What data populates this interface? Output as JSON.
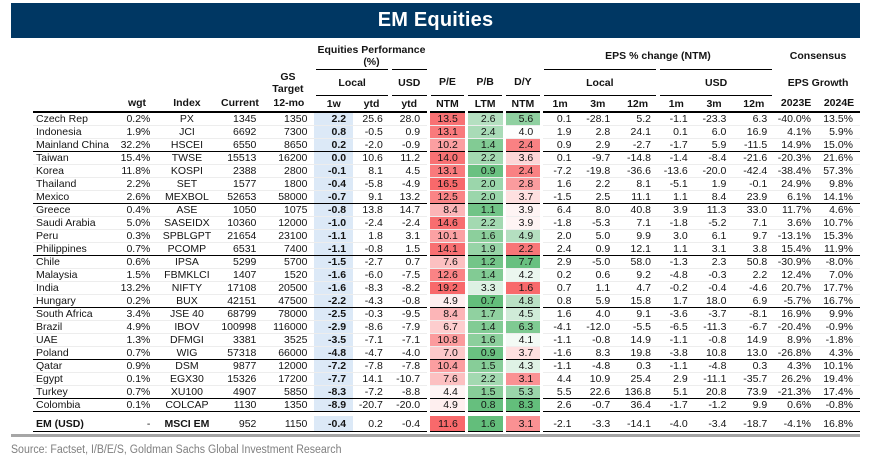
{
  "title": "EM Equities",
  "source": "Source: Factset, I/B/E/S, Goldman Sachs Global Investment Research",
  "colors": {
    "title_bg": "#003763",
    "title_text": "#FFFFFF",
    "week_column_bg": "#DCE9F7",
    "heat_red_max": "#F8696B",
    "heat_green_max": "#63BE7B",
    "heat_mid": "#FFFFFF",
    "group_rule": "#000000",
    "bottom_rule": "#A6A6A6",
    "source_text": "#7F7F7F"
  },
  "header": {
    "perf_group": "Equities Performance (%)",
    "eps_group": "EPS % change (NTM)",
    "consensus_line1": "Consensus",
    "consensus_line2": "EPS Growth",
    "gs_target": "GS Target",
    "local": "Local",
    "usd": "USD",
    "pe": "P/E",
    "pb": "P/B",
    "dy": "D/Y",
    "cols": {
      "wgt": "wgt",
      "index": "Index",
      "current": "Current",
      "twelve_mo": "12-mo",
      "w1": "1w",
      "ytd": "ytd",
      "ntm": "NTM",
      "ltm": "LTM",
      "m1": "1m",
      "m3": "3m",
      "m12": "12m",
      "e2023": "2023E",
      "e2024": "2024E"
    }
  },
  "rows": [
    {
      "country": "Czech Rep",
      "wgt": "0.2%",
      "index": "PX",
      "current": "1345",
      "target": "1350",
      "w1": "2.2",
      "ytd_l": "25.6",
      "ytd_u": "28.0",
      "pe": "13.5",
      "pb": "2.6",
      "dy": "5.6",
      "l1m": "0.1",
      "l3m": "-28.1",
      "l12m": "5.2",
      "u1m": "-1.1",
      "u3m": "-23.3",
      "u12m": "6.3",
      "e23": "-40.0%",
      "e24": "13.5%",
      "c": {
        "pe": "#F87173",
        "pb": "#B5E0C1",
        "dy": "#8FD0A0"
      }
    },
    {
      "country": "Indonesia",
      "wgt": "1.9%",
      "index": "JCI",
      "current": "6692",
      "target": "7300",
      "w1": "0.8",
      "ytd_l": "-0.5",
      "ytd_u": "0.9",
      "pe": "13.1",
      "pb": "2.4",
      "dy": "4.0",
      "l1m": "1.9",
      "l3m": "2.8",
      "l12m": "24.1",
      "u1m": "0.1",
      "u3m": "6.0",
      "u12m": "16.9",
      "e23": "4.1%",
      "e24": "5.9%",
      "c": {
        "pe": "#F97A7C",
        "pb": "#A9DBB7",
        "dy": "#FDFEFD"
      }
    },
    {
      "country": "Mainland China",
      "wgt": "32.2%",
      "index": "HSCEI",
      "current": "6550",
      "target": "8650",
      "w1": "0.2",
      "ytd_l": "-2.0",
      "ytd_u": "-0.9",
      "pe": "10.2",
      "pb": "1.4",
      "dy": "2.4",
      "l1m": "0.9",
      "l3m": "2.9",
      "l12m": "-2.7",
      "u1m": "-1.7",
      "u3m": "5.9",
      "u12m": "-11.5",
      "e23": "14.9%",
      "e24": "15.0%",
      "c": {
        "pe": "#FB9FA1",
        "pb": "#82CB94",
        "dy": "#F98183"
      },
      "group_end": true
    },
    {
      "country": "Taiwan",
      "wgt": "15.4%",
      "index": "TWSE",
      "current": "15513",
      "target": "16200",
      "w1": "0.0",
      "ytd_l": "10.6",
      "ytd_u": "11.2",
      "pe": "14.0",
      "pb": "2.2",
      "dy": "3.6",
      "l1m": "0.1",
      "l3m": "-9.7",
      "l12m": "-14.8",
      "u1m": "-1.4",
      "u3m": "-8.4",
      "u12m": "-21.6",
      "e23": "-20.3%",
      "e24": "21.6%",
      "c": {
        "pe": "#F87173",
        "pb": "#A3D9B1",
        "dy": "#FDD6D7"
      }
    },
    {
      "country": "Korea",
      "wgt": "11.8%",
      "index": "KOSPI",
      "current": "2388",
      "target": "2800",
      "w1": "-0.1",
      "ytd_l": "8.1",
      "ytd_u": "4.5",
      "pe": "13.1",
      "pb": "0.9",
      "dy": "2.4",
      "l1m": "-7.2",
      "l3m": "-19.8",
      "l12m": "-36.6",
      "u1m": "-13.6",
      "u3m": "-20.0",
      "u12m": "-42.4",
      "e23": "-38.4%",
      "e24": "57.3%",
      "c": {
        "pe": "#F97A7C",
        "pb": "#6AC181",
        "dy": "#F98183"
      }
    },
    {
      "country": "Thailand",
      "wgt": "2.2%",
      "index": "SET",
      "current": "1577",
      "target": "1800",
      "w1": "-0.4",
      "ytd_l": "-5.8",
      "ytd_u": "-4.9",
      "pe": "16.5",
      "pb": "2.0",
      "dy": "2.8",
      "l1m": "1.6",
      "l3m": "2.2",
      "l12m": "8.1",
      "u1m": "-5.1",
      "u3m": "1.9",
      "u12m": "-0.1",
      "e23": "24.9%",
      "e24": "9.8%",
      "c": {
        "pe": "#F8696B",
        "pb": "#9BD6AB",
        "dy": "#FA9C9E"
      }
    },
    {
      "country": "Mexico",
      "wgt": "2.6%",
      "index": "MEXBOL",
      "current": "52653",
      "target": "58000",
      "w1": "-0.7",
      "ytd_l": "9.1",
      "ytd_u": "13.2",
      "pe": "12.5",
      "pb": "2.0",
      "dy": "3.7",
      "l1m": "-1.5",
      "l3m": "2.5",
      "l12m": "11.1",
      "u1m": "1.1",
      "u3m": "8.4",
      "u12m": "23.9",
      "e23": "6.1%",
      "e24": "14.1%",
      "c": {
        "pe": "#FA8486",
        "pb": "#9BD6AB",
        "dy": "#FEE0E0"
      },
      "group_end": true
    },
    {
      "country": "Greece",
      "wgt": "0.4%",
      "index": "ASE",
      "current": "1050",
      "target": "1075",
      "w1": "-0.8",
      "ytd_l": "13.8",
      "ytd_u": "14.7",
      "pe": "8.4",
      "pb": "1.1",
      "dy": "3.9",
      "l1m": "6.4",
      "l3m": "8.0",
      "l12m": "40.8",
      "u1m": "3.9",
      "u3m": "11.3",
      "u12m": "33.0",
      "e23": "11.7%",
      "e24": "4.6%",
      "c": {
        "pe": "#FCB5B7",
        "pb": "#71C487",
        "dy": "#FEF4F4"
      }
    },
    {
      "country": "Saudi Arabia",
      "wgt": "5.0%",
      "index": "SASEIDX",
      "current": "10360",
      "target": "12000",
      "w1": "-1.0",
      "ytd_l": "-2.4",
      "ytd_u": "-2.4",
      "pe": "14.6",
      "pb": "2.2",
      "dy": "3.9",
      "l1m": "-1.8",
      "l3m": "-5.3",
      "l12m": "7.1",
      "u1m": "-1.8",
      "u3m": "-5.2",
      "u12m": "7.1",
      "e23": "3.6%",
      "e24": "10.7%",
      "c": {
        "pe": "#F86D6F",
        "pb": "#A3D9B1",
        "dy": "#FEF4F4"
      }
    },
    {
      "country": "Peru",
      "wgt": "0.3%",
      "index": "SPBLGPT",
      "current": "21654",
      "target": "23100",
      "w1": "-1.1",
      "ytd_l": "1.8",
      "ytd_u": "3.1",
      "pe": "10.1",
      "pb": "1.6",
      "dy": "4.9",
      "l1m": "2.0",
      "l3m": "5.0",
      "l12m": "9.9",
      "u1m": "3.0",
      "u3m": "6.1",
      "u12m": "9.7",
      "e23": "-13.1%",
      "e24": "15.3%",
      "c": {
        "pe": "#FBA1A3",
        "pb": "#8CCF9C",
        "dy": "#B4DFC0"
      }
    },
    {
      "country": "Philippines",
      "wgt": "0.7%",
      "index": "PCOMP",
      "current": "6531",
      "target": "7400",
      "w1": "-1.1",
      "ytd_l": "-0.8",
      "ytd_u": "1.5",
      "pe": "14.1",
      "pb": "1.9",
      "dy": "2.2",
      "l1m": "2.4",
      "l3m": "0.9",
      "l12m": "12.1",
      "u1m": "1.1",
      "u3m": "3.1",
      "u12m": "3.8",
      "e23": "15.4%",
      "e24": "11.9%",
      "c": {
        "pe": "#F87072",
        "pb": "#97D4A7",
        "dy": "#F87678"
      },
      "group_end": true
    },
    {
      "country": "Chile",
      "wgt": "0.6%",
      "index": "IPSA",
      "current": "5299",
      "target": "5700",
      "w1": "-1.5",
      "ytd_l": "-2.7",
      "ytd_u": "0.7",
      "pe": "7.6",
      "pb": "1.2",
      "dy": "7.7",
      "l1m": "2.9",
      "l3m": "-5.0",
      "l12m": "58.0",
      "u1m": "-1.3",
      "u3m": "2.3",
      "u12m": "50.8",
      "e23": "-30.9%",
      "e24": "-8.0%",
      "c": {
        "pe": "#FCC0C1",
        "pb": "#74C589",
        "dy": "#68C080"
      }
    },
    {
      "country": "Malaysia",
      "wgt": "1.5%",
      "index": "FBMKLCI",
      "current": "1407",
      "target": "1520",
      "w1": "-1.6",
      "ytd_l": "-6.0",
      "ytd_u": "-7.5",
      "pe": "12.6",
      "pb": "1.4",
      "dy": "4.2",
      "l1m": "0.2",
      "l3m": "0.6",
      "l12m": "9.2",
      "u1m": "-4.8",
      "u3m": "-0.3",
      "u12m": "2.2",
      "e23": "12.4%",
      "e24": "7.0%",
      "c": {
        "pe": "#FA8385",
        "pb": "#82CB94",
        "dy": "#EBF7EF"
      }
    },
    {
      "country": "India",
      "wgt": "13.2%",
      "index": "NIFTY",
      "current": "17108",
      "target": "20500",
      "w1": "-1.6",
      "ytd_l": "-8.3",
      "ytd_u": "-8.2",
      "pe": "19.2",
      "pb": "3.3",
      "dy": "1.6",
      "l1m": "0.7",
      "l3m": "1.1",
      "l12m": "4.7",
      "u1m": "-0.2",
      "u3m": "-0.4",
      "u12m": "-4.6",
      "e23": "20.7%",
      "e24": "17.7%",
      "c": {
        "pe": "#F8696B",
        "pb": "#DDF1E3",
        "dy": "#F8696B"
      }
    },
    {
      "country": "Hungary",
      "wgt": "0.2%",
      "index": "BUX",
      "current": "42151",
      "target": "47500",
      "w1": "-2.2",
      "ytd_l": "-4.3",
      "ytd_u": "-0.8",
      "pe": "4.9",
      "pb": "0.7",
      "dy": "4.8",
      "l1m": "0.8",
      "l3m": "5.9",
      "l12m": "15.8",
      "u1m": "1.7",
      "u3m": "18.0",
      "u12m": "6.9",
      "e23": "-5.7%",
      "e24": "16.7%",
      "c": {
        "pe": "#FEEFEF",
        "pb": "#63BE7B",
        "dy": "#B9E1C4"
      },
      "group_end": true
    },
    {
      "country": "South Africa",
      "wgt": "3.4%",
      "index": "JSE 40",
      "current": "68799",
      "target": "78000",
      "w1": "-2.5",
      "ytd_l": "-0.3",
      "ytd_u": "-9.5",
      "pe": "8.4",
      "pb": "1.7",
      "dy": "4.5",
      "l1m": "1.6",
      "l3m": "4.0",
      "l12m": "9.1",
      "u1m": "-3.6",
      "u3m": "-3.7",
      "u12m": "-8.1",
      "e23": "16.9%",
      "e24": "9.9%",
      "c": {
        "pe": "#FCB5B7",
        "pb": "#90D1A0",
        "dy": "#D0EBD8"
      }
    },
    {
      "country": "Brazil",
      "wgt": "4.9%",
      "index": "IBOV",
      "current": "100998",
      "target": "116000",
      "w1": "-2.9",
      "ytd_l": "-8.6",
      "ytd_u": "-7.9",
      "pe": "6.7",
      "pb": "1.4",
      "dy": "6.3",
      "l1m": "-4.1",
      "l3m": "-12.0",
      "l12m": "-5.5",
      "u1m": "-6.5",
      "u3m": "-11.3",
      "u12m": "-6.7",
      "e23": "-20.4%",
      "e24": "-0.9%",
      "c": {
        "pe": "#FDCDCE",
        "pb": "#82CB94",
        "dy": "#7FCA92"
      }
    },
    {
      "country": "UAE",
      "wgt": "1.3%",
      "index": "DFMGI",
      "current": "3381",
      "target": "3525",
      "w1": "-3.5",
      "ytd_l": "-7.1",
      "ytd_u": "-7.1",
      "pe": "10.8",
      "pb": "1.6",
      "dy": "4.1",
      "l1m": "-1.1",
      "l3m": "-0.8",
      "l12m": "14.9",
      "u1m": "-1.1",
      "u3m": "-0.8",
      "u12m": "14.9",
      "e23": "8.9%",
      "e24": "-1.8%",
      "c": {
        "pe": "#FB9B9D",
        "pb": "#8CCF9C",
        "dy": "#F3FAF5"
      }
    },
    {
      "country": "Poland",
      "wgt": "0.7%",
      "index": "WIG",
      "current": "57318",
      "target": "66000",
      "w1": "-4.8",
      "ytd_l": "-4.7",
      "ytd_u": "-4.0",
      "pe": "7.0",
      "pb": "0.9",
      "dy": "3.7",
      "l1m": "-1.6",
      "l3m": "8.3",
      "l12m": "19.8",
      "u1m": "-3.8",
      "u3m": "10.8",
      "u12m": "13.0",
      "e23": "-26.8%",
      "e24": "4.3%",
      "c": {
        "pe": "#FDC9CA",
        "pb": "#6AC181",
        "dy": "#FEE0E0"
      },
      "group_end": true
    },
    {
      "country": "Qatar",
      "wgt": "0.9%",
      "index": "DSM",
      "current": "9877",
      "target": "12000",
      "w1": "-7.2",
      "ytd_l": "-7.8",
      "ytd_u": "-7.8",
      "pe": "10.4",
      "pb": "1.5",
      "dy": "4.3",
      "l1m": "-1.1",
      "l3m": "-4.8",
      "l12m": "0.3",
      "u1m": "-1.1",
      "u3m": "-4.8",
      "u12m": "0.3",
      "e23": "4.3%",
      "e24": "10.1%",
      "c": {
        "pe": "#FB9EA0",
        "pb": "#87CD98",
        "dy": "#DFF2E5"
      }
    },
    {
      "country": "Egypt",
      "wgt": "0.1%",
      "index": "EGX30",
      "current": "15326",
      "target": "17200",
      "w1": "-7.7",
      "ytd_l": "14.1",
      "ytd_u": "-10.7",
      "pe": "7.6",
      "pb": "2.2",
      "dy": "3.1",
      "l1m": "4.4",
      "l3m": "10.9",
      "l12m": "25.4",
      "u1m": "2.9",
      "u3m": "-11.1",
      "u12m": "-35.7",
      "e23": "26.2%",
      "e24": "19.4%",
      "c": {
        "pe": "#FCC0C1",
        "pb": "#A3D9B1",
        "dy": "#FA9193"
      }
    },
    {
      "country": "Turkey",
      "wgt": "0.7%",
      "index": "XU100",
      "current": "4907",
      "target": "5850",
      "w1": "-8.3",
      "ytd_l": "-7.2",
      "ytd_u": "-8.8",
      "pe": "4.4",
      "pb": "1.5",
      "dy": "5.3",
      "l1m": "5.5",
      "l3m": "22.6",
      "l12m": "136.8",
      "u1m": "5.1",
      "u3m": "20.8",
      "u12m": "73.9",
      "e23": "-21.3%",
      "e24": "17.4%",
      "c": {
        "pe": "#FEF4F4",
        "pb": "#87CD98",
        "dy": "#9AD5AA"
      },
      "group_end": true
    },
    {
      "country": "Colombia",
      "wgt": "0.1%",
      "index": "COLCAP",
      "current": "1130",
      "target": "1350",
      "w1": "-8.9",
      "ytd_l": "-20.7",
      "ytd_u": "-20.0",
      "pe": "4.9",
      "pb": "0.8",
      "dy": "8.3",
      "l1m": "2.6",
      "l3m": "-0.7",
      "l12m": "36.4",
      "u1m": "-1.7",
      "u3m": "-1.2",
      "u12m": "9.9",
      "e23": "0.6%",
      "e24": "-0.8%",
      "c": {
        "pe": "#FEEFEF",
        "pb": "#66BF7E",
        "dy": "#63BE7B"
      },
      "group_end": true
    },
    {
      "spacer": true
    },
    {
      "country": "EM (USD)",
      "wgt": "-",
      "index": "MSCI EM",
      "current": "952",
      "target": "1150",
      "w1": "-0.4",
      "ytd_l": "0.2",
      "ytd_u": "-0.4",
      "pe": "11.6",
      "pb": "1.6",
      "dy": "3.1",
      "l1m": "-2.1",
      "l3m": "-3.3",
      "l12m": "-14.1",
      "u1m": "-4.0",
      "u3m": "-3.4",
      "u12m": "-18.7",
      "e23": "-4.1%",
      "e24": "16.8%",
      "c": {
        "pe": "#F8696B",
        "pb": "#63BE7B",
        "dy": "#FA9193"
      },
      "group_end": true,
      "total": true
    }
  ]
}
